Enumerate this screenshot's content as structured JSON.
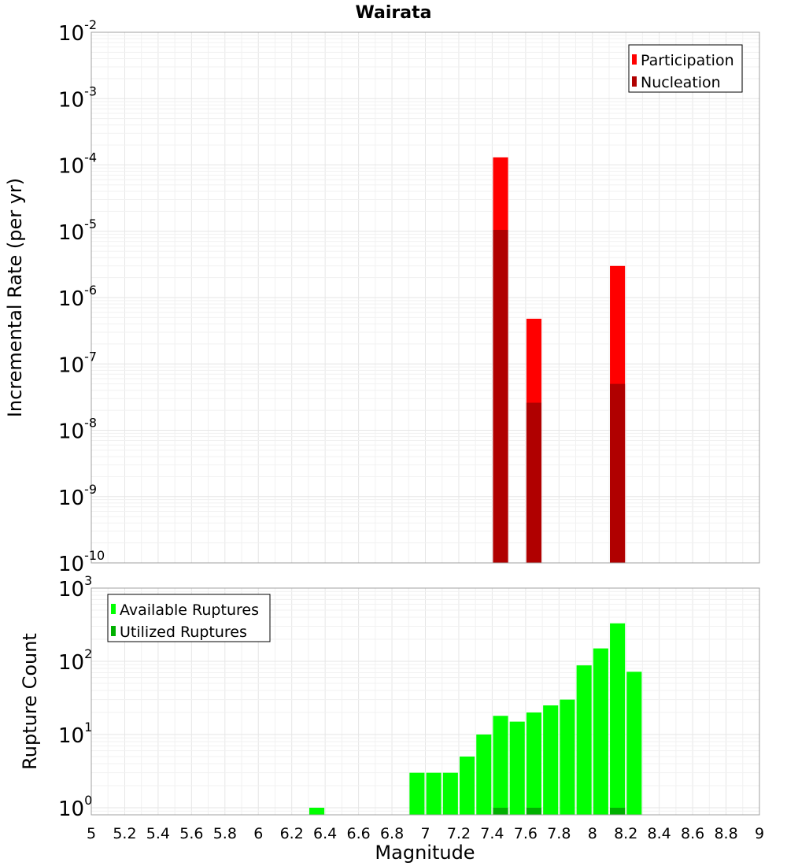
{
  "chart_data": [
    {
      "type": "bar",
      "title": "Wairata",
      "xlabel": "",
      "ylabel": "Incremental Rate (per yr)",
      "yscale": "log",
      "ylim": [
        1e-10,
        0.01
      ],
      "xlim": [
        5,
        9
      ],
      "grid": true,
      "legend_position": "top-right",
      "series": [
        {
          "name": "Participation",
          "color": "#ff0000",
          "x": [
            7.45,
            7.65,
            8.15
          ],
          "values": [
            0.00013,
            4.8e-07,
            3e-06
          ]
        },
        {
          "name": "Nucleation",
          "color": "#b00000",
          "x": [
            7.45,
            7.65,
            8.15
          ],
          "values": [
            1.05e-05,
            2.6e-08,
            5e-08
          ]
        }
      ]
    },
    {
      "type": "bar",
      "title": "",
      "xlabel": "Magnitude",
      "ylabel": "Rupture Count",
      "yscale": "log",
      "ylim": [
        0.8,
        1000
      ],
      "xlim": [
        5,
        9
      ],
      "grid": true,
      "legend_position": "top-left",
      "xticks": [
        "5",
        "5.2",
        "5.4",
        "5.6",
        "5.8",
        "6",
        "6.2",
        "6.4",
        "6.6",
        "6.8",
        "7",
        "7.2",
        "7.4",
        "7.6",
        "7.8",
        "8",
        "8.2",
        "8.4",
        "8.6",
        "8.8",
        "9"
      ],
      "series": [
        {
          "name": "Available Ruptures",
          "color": "#00ff00",
          "x": [
            6.35,
            6.95,
            7.05,
            7.15,
            7.25,
            7.35,
            7.45,
            7.55,
            7.65,
            7.75,
            7.85,
            7.95,
            8.05,
            8.15,
            8.25
          ],
          "values": [
            1,
            3,
            3,
            3,
            5,
            10,
            18,
            15,
            20,
            25,
            30,
            88,
            150,
            330,
            72
          ]
        },
        {
          "name": "Utilized Ruptures",
          "color": "#00b000",
          "x": [
            7.45,
            7.65,
            8.15
          ],
          "values": [
            1,
            1,
            1
          ]
        }
      ]
    }
  ]
}
